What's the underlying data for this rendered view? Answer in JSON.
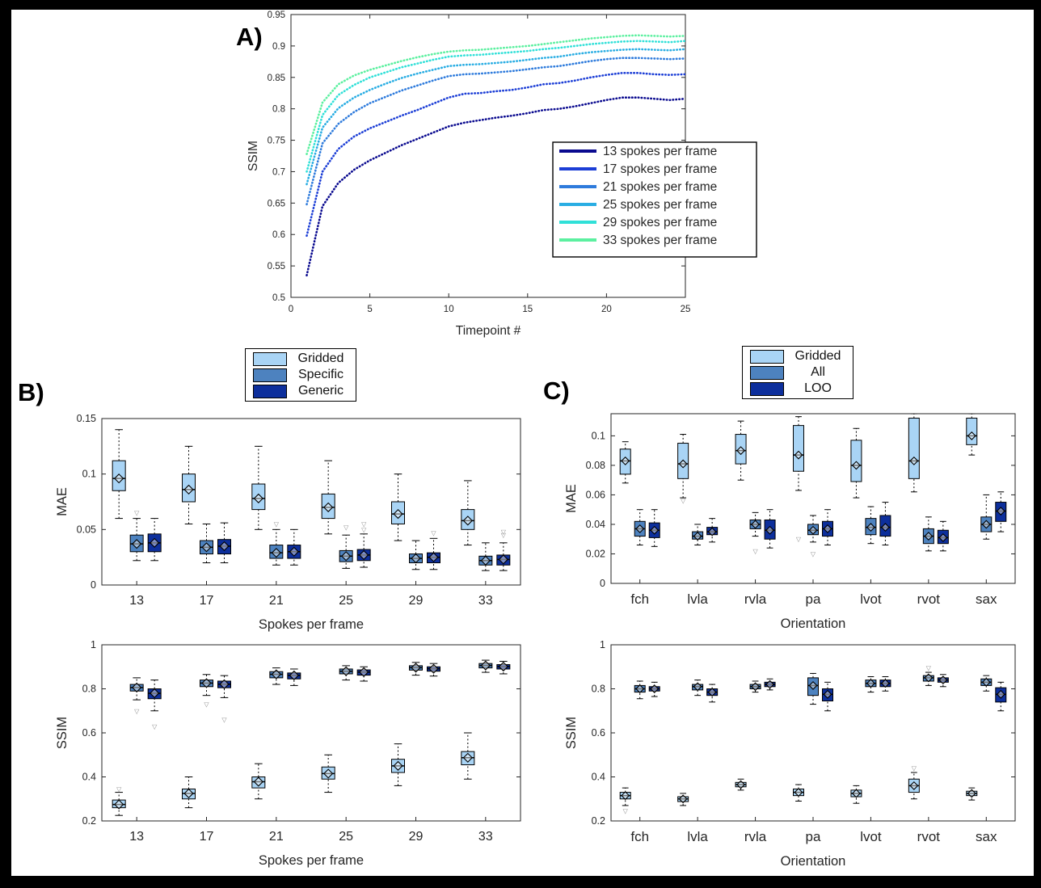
{
  "figure": {
    "panel_a_label": "A)",
    "panel_b_label": "B)",
    "panel_c_label": "C)"
  },
  "chart_data": [
    {
      "id": "panelA",
      "type": "line",
      "xlabel": "Timepoint #",
      "ylabel": "SSIM",
      "xlim": [
        0,
        25
      ],
      "ylim": [
        0.5,
        0.95
      ],
      "xticks": [
        0,
        5,
        10,
        15,
        20,
        25
      ],
      "yticks": [
        0.5,
        0.55,
        0.6,
        0.65,
        0.7,
        0.75,
        0.8,
        0.85,
        0.9,
        0.95
      ],
      "ytick_labels": [
        "0.5",
        "0.55",
        "0.6",
        "0.65",
        "0.7",
        "0.75",
        "0.8",
        "0.85",
        "0.9",
        "0.95"
      ],
      "legend_position": "inside-right",
      "x": [
        1,
        2,
        3,
        4,
        5,
        6,
        7,
        8,
        9,
        10,
        11,
        12,
        13,
        14,
        15,
        16,
        17,
        18,
        19,
        20,
        21,
        22,
        23,
        24,
        25
      ],
      "series": [
        {
          "name": "13 spokes per frame",
          "color": "#0a0a8f",
          "values": [
            0.535,
            0.645,
            0.682,
            0.703,
            0.718,
            0.73,
            0.742,
            0.752,
            0.762,
            0.772,
            0.778,
            0.782,
            0.786,
            0.789,
            0.793,
            0.798,
            0.8,
            0.804,
            0.809,
            0.814,
            0.818,
            0.818,
            0.816,
            0.814,
            0.816
          ]
        },
        {
          "name": "17 spokes per frame",
          "color": "#1c3ed6",
          "values": [
            0.598,
            0.7,
            0.736,
            0.756,
            0.769,
            0.779,
            0.789,
            0.798,
            0.808,
            0.818,
            0.824,
            0.825,
            0.828,
            0.83,
            0.834,
            0.839,
            0.841,
            0.845,
            0.85,
            0.854,
            0.857,
            0.857,
            0.855,
            0.854,
            0.855
          ]
        },
        {
          "name": "21 spokes per frame",
          "color": "#2e7bdc",
          "values": [
            0.648,
            0.745,
            0.776,
            0.795,
            0.809,
            0.819,
            0.829,
            0.837,
            0.845,
            0.852,
            0.855,
            0.856,
            0.858,
            0.86,
            0.863,
            0.866,
            0.868,
            0.872,
            0.876,
            0.879,
            0.881,
            0.881,
            0.88,
            0.879,
            0.88
          ]
        },
        {
          "name": "25 spokes per frame",
          "color": "#29ade3",
          "values": [
            0.68,
            0.77,
            0.801,
            0.818,
            0.83,
            0.84,
            0.849,
            0.856,
            0.862,
            0.868,
            0.87,
            0.871,
            0.873,
            0.875,
            0.878,
            0.881,
            0.883,
            0.887,
            0.89,
            0.892,
            0.894,
            0.895,
            0.894,
            0.893,
            0.895
          ]
        },
        {
          "name": "29 spokes per frame",
          "color": "#30e0d8",
          "values": [
            0.7,
            0.79,
            0.822,
            0.838,
            0.85,
            0.858,
            0.866,
            0.872,
            0.878,
            0.883,
            0.885,
            0.886,
            0.888,
            0.89,
            0.892,
            0.895,
            0.897,
            0.9,
            0.903,
            0.905,
            0.907,
            0.908,
            0.907,
            0.906,
            0.908
          ]
        },
        {
          "name": "33 spokes per frame",
          "color": "#5cf0a0",
          "values": [
            0.728,
            0.81,
            0.839,
            0.853,
            0.862,
            0.869,
            0.876,
            0.882,
            0.887,
            0.891,
            0.893,
            0.894,
            0.896,
            0.898,
            0.9,
            0.903,
            0.906,
            0.909,
            0.912,
            0.914,
            0.916,
            0.917,
            0.916,
            0.915,
            0.916
          ]
        }
      ]
    },
    {
      "id": "panelB_mae",
      "type": "box",
      "xlabel": "Spokes per frame",
      "ylabel": "MAE",
      "ylim": [
        0,
        0.15
      ],
      "yticks": [
        0,
        0.05,
        0.1,
        0.15
      ],
      "ytick_labels": [
        "0",
        "0.05",
        "0.1",
        "0.15"
      ],
      "categories": [
        "13",
        "17",
        "21",
        "25",
        "29",
        "33"
      ],
      "series": [
        {
          "name": "Gridded",
          "color": "#a9d4f5",
          "stats": [
            [
              0.06,
              0.085,
              0.096,
              0.112,
              0.14
            ],
            [
              0.055,
              0.075,
              0.086,
              0.1,
              0.125
            ],
            [
              0.05,
              0.068,
              0.078,
              0.091,
              0.125
            ],
            [
              0.046,
              0.06,
              0.07,
              0.082,
              0.112
            ],
            [
              0.04,
              0.055,
              0.064,
              0.075,
              0.1
            ],
            [
              0.036,
              0.05,
              0.058,
              0.068,
              0.094
            ]
          ],
          "outliers": {}
        },
        {
          "name": "Specific",
          "color": "#4d82bf",
          "stats": [
            [
              0.022,
              0.03,
              0.037,
              0.045,
              0.06
            ],
            [
              0.02,
              0.028,
              0.034,
              0.04,
              0.055
            ],
            [
              0.018,
              0.024,
              0.029,
              0.036,
              0.05
            ],
            [
              0.015,
              0.021,
              0.026,
              0.031,
              0.045
            ],
            [
              0.014,
              0.02,
              0.024,
              0.028,
              0.04
            ],
            [
              0.013,
              0.018,
              0.022,
              0.026,
              0.038
            ]
          ],
          "outliers": {
            "0": [
              0.065
            ],
            "2": [
              0.055
            ],
            "3": [
              0.052
            ]
          }
        },
        {
          "name": "Generic",
          "color": "#0d2f9c",
          "stats": [
            [
              0.022,
              0.03,
              0.038,
              0.046,
              0.06
            ],
            [
              0.02,
              0.028,
              0.035,
              0.041,
              0.056
            ],
            [
              0.018,
              0.024,
              0.03,
              0.036,
              0.05
            ],
            [
              0.016,
              0.022,
              0.027,
              0.032,
              0.046
            ],
            [
              0.014,
              0.02,
              0.025,
              0.029,
              0.042
            ],
            [
              0.013,
              0.018,
              0.023,
              0.027,
              0.038
            ]
          ],
          "outliers": {
            "3": [
              0.05,
              0.055
            ],
            "4": [
              0.047
            ],
            "5": [
              0.045,
              0.048
            ]
          }
        }
      ]
    },
    {
      "id": "panelB_ssim",
      "type": "box",
      "xlabel": "Spokes per frame",
      "ylabel": "SSIM",
      "ylim": [
        0.2,
        1
      ],
      "yticks": [
        0.2,
        0.4,
        0.6,
        0.8,
        1
      ],
      "ytick_labels": [
        "0.2",
        "0.4",
        "0.6",
        "0.8",
        "1"
      ],
      "categories": [
        "13",
        "17",
        "21",
        "25",
        "29",
        "33"
      ],
      "series": [
        {
          "name": "Gridded",
          "color": "#a9d4f5",
          "stats": [
            [
              0.225,
              0.26,
              0.275,
              0.295,
              0.33
            ],
            [
              0.26,
              0.3,
              0.325,
              0.345,
              0.4
            ],
            [
              0.3,
              0.35,
              0.378,
              0.4,
              0.46
            ],
            [
              0.33,
              0.39,
              0.415,
              0.445,
              0.5
            ],
            [
              0.36,
              0.42,
              0.45,
              0.48,
              0.55
            ],
            [
              0.39,
              0.455,
              0.487,
              0.515,
              0.6
            ]
          ],
          "outliers": {
            "0": [
              0.345
            ]
          }
        },
        {
          "name": "Specific",
          "color": "#4d82bf",
          "stats": [
            [
              0.75,
              0.79,
              0.806,
              0.82,
              0.85
            ],
            [
              0.77,
              0.81,
              0.826,
              0.84,
              0.865
            ],
            [
              0.82,
              0.85,
              0.866,
              0.878,
              0.895
            ],
            [
              0.84,
              0.868,
              0.88,
              0.89,
              0.905
            ],
            [
              0.862,
              0.885,
              0.896,
              0.905,
              0.92
            ],
            [
              0.875,
              0.895,
              0.906,
              0.915,
              0.93
            ]
          ],
          "outliers": {
            "0": [
              0.7
            ],
            "1": [
              0.73
            ]
          }
        },
        {
          "name": "Generic",
          "color": "#0d2f9c",
          "stats": [
            [
              0.7,
              0.755,
              0.78,
              0.8,
              0.84
            ],
            [
              0.76,
              0.805,
              0.821,
              0.835,
              0.86
            ],
            [
              0.815,
              0.845,
              0.861,
              0.872,
              0.89
            ],
            [
              0.835,
              0.862,
              0.876,
              0.886,
              0.9
            ],
            [
              0.858,
              0.88,
              0.891,
              0.9,
              0.915
            ],
            [
              0.868,
              0.89,
              0.901,
              0.91,
              0.925
            ]
          ],
          "outliers": {
            "0": [
              0.63
            ],
            "1": [
              0.66
            ]
          }
        }
      ]
    },
    {
      "id": "panelC_mae",
      "type": "box",
      "xlabel": "Orientation",
      "ylabel": "MAE",
      "ylim": [
        0,
        0.115
      ],
      "yticks": [
        0,
        0.02,
        0.04,
        0.06,
        0.08,
        0.1
      ],
      "ytick_labels": [
        "0",
        "0.02",
        "0.04",
        "0.06",
        "0.08",
        "0.1"
      ],
      "categories": [
        "fch",
        "lvla",
        "rvla",
        "pa",
        "lvot",
        "rvot",
        "sax"
      ],
      "series": [
        {
          "name": "Gridded",
          "color": "#a9d4f5",
          "stats": [
            [
              0.068,
              0.074,
              0.083,
              0.091,
              0.096
            ],
            [
              0.058,
              0.071,
              0.081,
              0.095,
              0.101
            ],
            [
              0.07,
              0.081,
              0.09,
              0.101,
              0.11
            ],
            [
              0.063,
              0.076,
              0.087,
              0.107,
              0.113
            ],
            [
              0.058,
              0.069,
              0.08,
              0.097,
              0.105
            ],
            [
              0.062,
              0.071,
              0.083,
              0.112,
              0.115
            ],
            [
              0.087,
              0.094,
              0.1,
              0.112,
              0.115
            ]
          ],
          "outliers": {
            "1": [
              0.056
            ],
            "3": [
              0.03
            ]
          }
        },
        {
          "name": "All",
          "color": "#4d82bf",
          "stats": [
            [
              0.026,
              0.032,
              0.037,
              0.042,
              0.05
            ],
            [
              0.026,
              0.03,
              0.032,
              0.035,
              0.04
            ],
            [
              0.032,
              0.037,
              0.04,
              0.043,
              0.048
            ],
            [
              0.028,
              0.033,
              0.036,
              0.04,
              0.046
            ],
            [
              0.027,
              0.033,
              0.038,
              0.044,
              0.052
            ],
            [
              0.022,
              0.027,
              0.032,
              0.037,
              0.045
            ],
            [
              0.03,
              0.035,
              0.04,
              0.045,
              0.06
            ]
          ],
          "outliers": {
            "2": [
              0.022
            ],
            "3": [
              0.02
            ]
          }
        },
        {
          "name": "LOO",
          "color": "#0d2f9c",
          "stats": [
            [
              0.025,
              0.031,
              0.036,
              0.041,
              0.05
            ],
            [
              0.028,
              0.033,
              0.035,
              0.038,
              0.044
            ],
            [
              0.024,
              0.03,
              0.036,
              0.043,
              0.05
            ],
            [
              0.026,
              0.032,
              0.037,
              0.042,
              0.05
            ],
            [
              0.026,
              0.032,
              0.038,
              0.046,
              0.055
            ],
            [
              0.022,
              0.027,
              0.031,
              0.036,
              0.042
            ],
            [
              0.035,
              0.042,
              0.049,
              0.055,
              0.062
            ]
          ],
          "outliers": {}
        }
      ]
    },
    {
      "id": "panelC_ssim",
      "type": "box",
      "xlabel": "Orientation",
      "ylabel": "SSIM",
      "ylim": [
        0.2,
        1
      ],
      "yticks": [
        0.2,
        0.4,
        0.6,
        0.8,
        1
      ],
      "ytick_labels": [
        "0.2",
        "0.4",
        "0.6",
        "0.8",
        "1"
      ],
      "categories": [
        "fch",
        "lvla",
        "rvla",
        "pa",
        "lvot",
        "rvot",
        "sax"
      ],
      "series": [
        {
          "name": "Gridded",
          "color": "#a9d4f5",
          "stats": [
            [
              0.27,
              0.3,
              0.315,
              0.33,
              0.35
            ],
            [
              0.27,
              0.288,
              0.3,
              0.31,
              0.325
            ],
            [
              0.34,
              0.355,
              0.365,
              0.375,
              0.39
            ],
            [
              0.29,
              0.315,
              0.33,
              0.345,
              0.365
            ],
            [
              0.28,
              0.31,
              0.325,
              0.34,
              0.36
            ],
            [
              0.3,
              0.33,
              0.36,
              0.39,
              0.42
            ],
            [
              0.295,
              0.315,
              0.325,
              0.335,
              0.35
            ]
          ],
          "outliers": {
            "0": [
              0.245
            ],
            "5": [
              0.44
            ]
          }
        },
        {
          "name": "All",
          "color": "#4d82bf",
          "stats": [
            [
              0.755,
              0.785,
              0.8,
              0.815,
              0.835
            ],
            [
              0.77,
              0.795,
              0.81,
              0.82,
              0.84
            ],
            [
              0.785,
              0.8,
              0.81,
              0.82,
              0.835
            ],
            [
              0.73,
              0.77,
              0.815,
              0.85,
              0.87
            ],
            [
              0.785,
              0.81,
              0.825,
              0.84,
              0.855
            ],
            [
              0.815,
              0.835,
              0.85,
              0.86,
              0.875
            ],
            [
              0.79,
              0.815,
              0.83,
              0.845,
              0.86
            ]
          ],
          "outliers": {
            "5": [
              0.895
            ]
          }
        },
        {
          "name": "LOO",
          "color": "#0d2f9c",
          "stats": [
            [
              0.765,
              0.79,
              0.8,
              0.81,
              0.83
            ],
            [
              0.74,
              0.77,
              0.785,
              0.8,
              0.82
            ],
            [
              0.795,
              0.81,
              0.82,
              0.83,
              0.845
            ],
            [
              0.7,
              0.745,
              0.775,
              0.8,
              0.83
            ],
            [
              0.79,
              0.81,
              0.825,
              0.84,
              0.855
            ],
            [
              0.81,
              0.83,
              0.84,
              0.85,
              0.865
            ],
            [
              0.7,
              0.74,
              0.775,
              0.805,
              0.83
            ]
          ],
          "outliers": {}
        }
      ]
    }
  ]
}
